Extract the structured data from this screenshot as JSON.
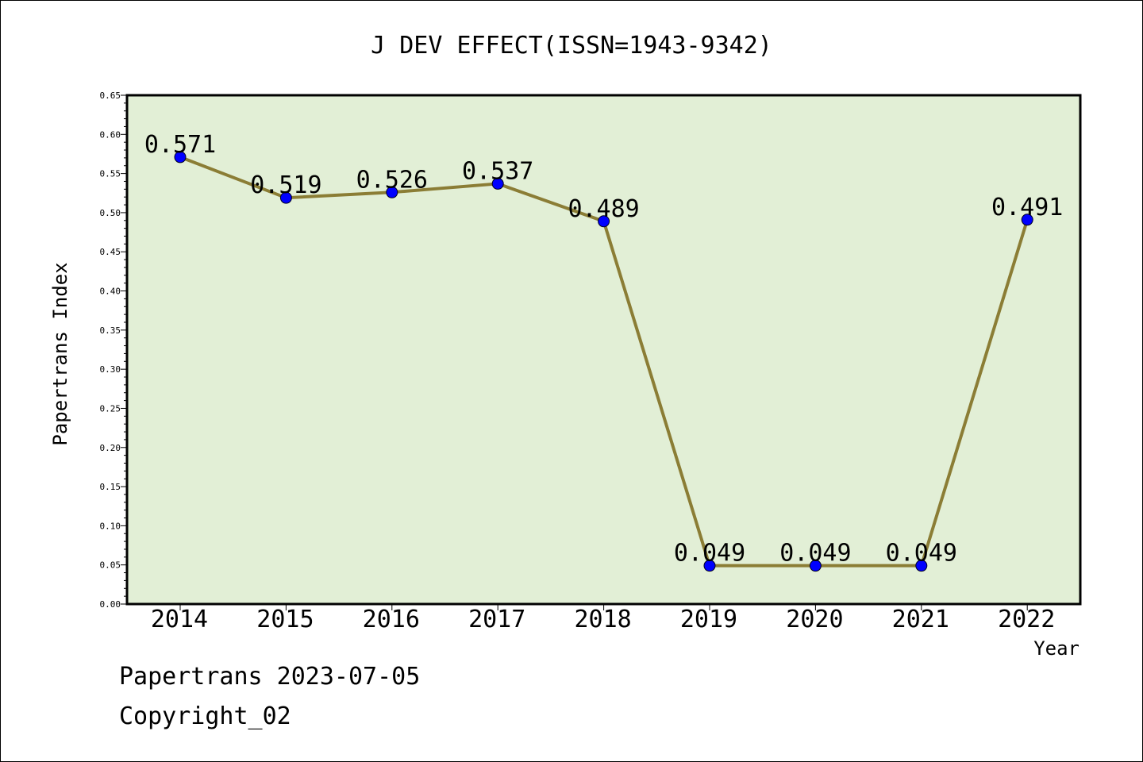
{
  "chart_data": {
    "type": "line",
    "title": "J DEV EFFECT(ISSN=1943-9342)",
    "xlabel": "Year",
    "ylabel": "Papertrans Index",
    "categories": [
      "2014",
      "2015",
      "2016",
      "2017",
      "2018",
      "2019",
      "2020",
      "2021",
      "2022"
    ],
    "series": [
      {
        "values": [
          0.571,
          0.519,
          0.526,
          0.537,
          0.489,
          0.049,
          0.049,
          0.049,
          0.491
        ],
        "labels": [
          "0.571",
          "0.519",
          "0.526",
          "0.537",
          "0.489",
          "0.049",
          "0.049",
          "0.049",
          "0.491"
        ]
      }
    ],
    "ylim": [
      0,
      0.65
    ],
    "yticks": [
      "0.00",
      "0.05",
      "0.10",
      "0.15",
      "0.20",
      "0.25",
      "0.30",
      "0.35",
      "0.40",
      "0.45",
      "0.50",
      "0.55",
      "0.60",
      "0.65"
    ],
    "grid": false,
    "legend": "none",
    "colors": {
      "plot_background": "#e2efd6",
      "line": "#8b7d35",
      "marker": "#0000ff"
    }
  },
  "footer": {
    "line1": "Papertrans 2023-07-05",
    "line2": "Copyright_02"
  }
}
